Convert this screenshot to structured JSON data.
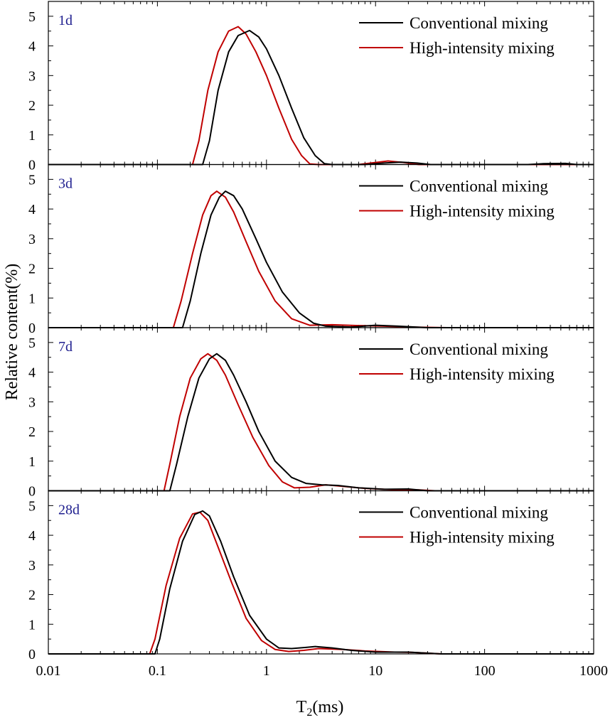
{
  "chart_data": {
    "type": "line",
    "xlabel_base": "T",
    "xlabel_sub": "2",
    "xlabel_unit": "(ms)",
    "ylabel": "Relative content(%)",
    "xscale": "log",
    "xlim": [
      0.01,
      1000
    ],
    "ylim": [
      0,
      5.5
    ],
    "x_tick_labels": [
      "0.01",
      "0.1",
      "1",
      "10",
      "100",
      "1000"
    ],
    "y_tick_labels": [
      "0",
      "1",
      "2",
      "3",
      "4",
      "5"
    ],
    "colors": {
      "conventional": "#000000",
      "high_intensity": "#c00000",
      "panel_label": "#1f1f8f"
    },
    "legend_position": "top-right",
    "panels": [
      {
        "label": "1d",
        "series": [
          {
            "name": "Conventional mixing",
            "color": "#000000",
            "points": [
              [
                0.01,
                0
              ],
              [
                0.26,
                0
              ],
              [
                0.3,
                0.8
              ],
              [
                0.36,
                2.5
              ],
              [
                0.45,
                3.8
              ],
              [
                0.55,
                4.35
              ],
              [
                0.7,
                4.52
              ],
              [
                0.85,
                4.3
              ],
              [
                1.0,
                3.9
              ],
              [
                1.3,
                3.0
              ],
              [
                1.7,
                1.9
              ],
              [
                2.2,
                0.9
              ],
              [
                2.8,
                0.3
              ],
              [
                3.4,
                0.03
              ],
              [
                4,
                0
              ],
              [
                8,
                0
              ],
              [
                12,
                0.05
              ],
              [
                17,
                0.08
              ],
              [
                24,
                0.05
              ],
              [
                32,
                0
              ],
              [
                250,
                0
              ],
              [
                350,
                0.03
              ],
              [
                550,
                0.04
              ],
              [
                700,
                0
              ],
              [
                1000,
                0
              ]
            ]
          },
          {
            "name": "High-intensity mixing",
            "color": "#c00000",
            "points": [
              [
                0.01,
                0
              ],
              [
                0.21,
                0
              ],
              [
                0.24,
                0.8
              ],
              [
                0.29,
                2.5
              ],
              [
                0.36,
                3.8
              ],
              [
                0.45,
                4.5
              ],
              [
                0.55,
                4.65
              ],
              [
                0.65,
                4.4
              ],
              [
                0.8,
                3.8
              ],
              [
                1.0,
                3.0
              ],
              [
                1.3,
                1.9
              ],
              [
                1.7,
                0.85
              ],
              [
                2.1,
                0.3
              ],
              [
                2.5,
                0.02
              ],
              [
                3,
                0
              ],
              [
                7,
                0
              ],
              [
                10,
                0.07
              ],
              [
                13,
                0.12
              ],
              [
                18,
                0.07
              ],
              [
                25,
                0
              ],
              [
                1000,
                0
              ]
            ]
          }
        ]
      },
      {
        "label": "3d",
        "series": [
          {
            "name": "Conventional mixing",
            "color": "#000000",
            "points": [
              [
                0.01,
                0
              ],
              [
                0.17,
                0
              ],
              [
                0.2,
                0.9
              ],
              [
                0.25,
                2.5
              ],
              [
                0.31,
                3.8
              ],
              [
                0.37,
                4.4
              ],
              [
                0.42,
                4.6
              ],
              [
                0.5,
                4.45
              ],
              [
                0.6,
                4.0
              ],
              [
                0.8,
                3.0
              ],
              [
                1.0,
                2.2
              ],
              [
                1.4,
                1.2
              ],
              [
                2.0,
                0.5
              ],
              [
                2.7,
                0.15
              ],
              [
                3.5,
                0.05
              ],
              [
                6,
                0.02
              ],
              [
                10,
                0.08
              ],
              [
                16,
                0.05
              ],
              [
                30,
                0
              ],
              [
                1000,
                0
              ]
            ]
          },
          {
            "name": "High-intensity mixing",
            "color": "#c00000",
            "points": [
              [
                0.01,
                0
              ],
              [
                0.14,
                0
              ],
              [
                0.165,
                0.9
              ],
              [
                0.21,
                2.5
              ],
              [
                0.26,
                3.8
              ],
              [
                0.31,
                4.45
              ],
              [
                0.35,
                4.6
              ],
              [
                0.42,
                4.4
              ],
              [
                0.5,
                3.9
              ],
              [
                0.65,
                2.9
              ],
              [
                0.85,
                1.9
              ],
              [
                1.2,
                0.9
              ],
              [
                1.7,
                0.3
              ],
              [
                2.5,
                0.08
              ],
              [
                4,
                0.1
              ],
              [
                7,
                0.07
              ],
              [
                12,
                0.05
              ],
              [
                20,
                0.02
              ],
              [
                45,
                0
              ],
              [
                1000,
                0
              ]
            ]
          }
        ]
      },
      {
        "label": "7d",
        "series": [
          {
            "name": "Conventional mixing",
            "color": "#000000",
            "points": [
              [
                0.01,
                0
              ],
              [
                0.13,
                0
              ],
              [
                0.15,
                0.9
              ],
              [
                0.19,
                2.5
              ],
              [
                0.24,
                3.8
              ],
              [
                0.3,
                4.45
              ],
              [
                0.35,
                4.62
              ],
              [
                0.42,
                4.4
              ],
              [
                0.5,
                3.9
              ],
              [
                0.65,
                3.0
              ],
              [
                0.85,
                2.0
              ],
              [
                1.2,
                1.0
              ],
              [
                1.7,
                0.45
              ],
              [
                2.3,
                0.25
              ],
              [
                3.2,
                0.2
              ],
              [
                4.5,
                0.18
              ],
              [
                7,
                0.1
              ],
              [
                12,
                0.05
              ],
              [
                20,
                0.06
              ],
              [
                30,
                0
              ],
              [
                1000,
                0
              ]
            ]
          },
          {
            "name": "High-intensity mixing",
            "color": "#c00000",
            "points": [
              [
                0.01,
                0
              ],
              [
                0.115,
                0
              ],
              [
                0.13,
                0.9
              ],
              [
                0.16,
                2.5
              ],
              [
                0.2,
                3.8
              ],
              [
                0.25,
                4.45
              ],
              [
                0.29,
                4.62
              ],
              [
                0.35,
                4.4
              ],
              [
                0.42,
                3.9
              ],
              [
                0.55,
                2.9
              ],
              [
                0.75,
                1.8
              ],
              [
                1.05,
                0.85
              ],
              [
                1.4,
                0.3
              ],
              [
                1.8,
                0.1
              ],
              [
                2.5,
                0.12
              ],
              [
                3.5,
                0.2
              ],
              [
                5,
                0.15
              ],
              [
                8,
                0.08
              ],
              [
                14,
                0.04
              ],
              [
                25,
                0.03
              ],
              [
                35,
                0
              ],
              [
                1000,
                0
              ]
            ]
          }
        ]
      },
      {
        "label": "28d",
        "series": [
          {
            "name": "Conventional mixing",
            "color": "#000000",
            "points": [
              [
                0.01,
                0
              ],
              [
                0.095,
                0
              ],
              [
                0.105,
                0.5
              ],
              [
                0.13,
                2.2
              ],
              [
                0.17,
                3.8
              ],
              [
                0.22,
                4.7
              ],
              [
                0.26,
                4.82
              ],
              [
                0.3,
                4.65
              ],
              [
                0.38,
                3.8
              ],
              [
                0.5,
                2.6
              ],
              [
                0.7,
                1.3
              ],
              [
                1.0,
                0.5
              ],
              [
                1.3,
                0.2
              ],
              [
                1.7,
                0.18
              ],
              [
                2.3,
                0.22
              ],
              [
                2.8,
                0.25
              ],
              [
                4,
                0.2
              ],
              [
                6,
                0.12
              ],
              [
                10,
                0.06
              ],
              [
                20,
                0.06
              ],
              [
                40,
                0
              ],
              [
                1000,
                0
              ]
            ]
          },
          {
            "name": "High-intensity mixing",
            "color": "#c00000",
            "points": [
              [
                0.01,
                0
              ],
              [
                0.085,
                0
              ],
              [
                0.095,
                0.5
              ],
              [
                0.12,
                2.3
              ],
              [
                0.16,
                3.9
              ],
              [
                0.21,
                4.72
              ],
              [
                0.245,
                4.78
              ],
              [
                0.29,
                4.5
              ],
              [
                0.36,
                3.6
              ],
              [
                0.48,
                2.4
              ],
              [
                0.65,
                1.2
              ],
              [
                0.9,
                0.45
              ],
              [
                1.2,
                0.15
              ],
              [
                1.6,
                0.08
              ],
              [
                2.2,
                0.12
              ],
              [
                3,
                0.18
              ],
              [
                5,
                0.15
              ],
              [
                8,
                0.1
              ],
              [
                15,
                0.06
              ],
              [
                22,
                0.05
              ],
              [
                40,
                0
              ],
              [
                1000,
                0
              ]
            ]
          }
        ]
      }
    ]
  }
}
